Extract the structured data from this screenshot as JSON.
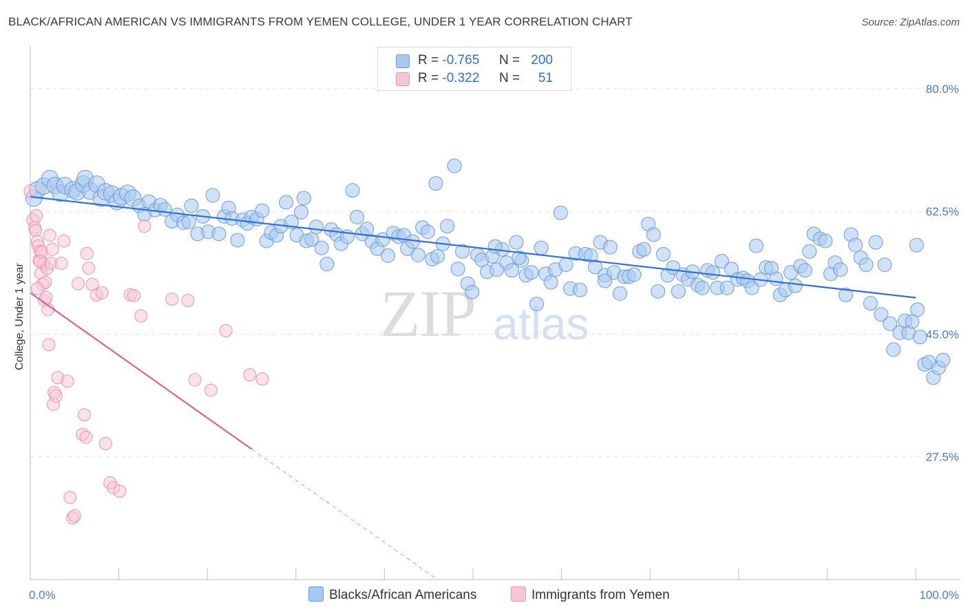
{
  "title": "BLACK/AFRICAN AMERICAN VS IMMIGRANTS FROM YEMEN COLLEGE, UNDER 1 YEAR CORRELATION CHART",
  "source": "Source: ZipAtlas.com",
  "watermark": {
    "zip": "ZIP",
    "atlas": "atlas"
  },
  "legend": {
    "rows": [
      {
        "r_label": "R =",
        "r_value": "-0.765",
        "n_label": "N =",
        "n_value": "200"
      },
      {
        "r_label": "R =",
        "r_value": "-0.322",
        "n_label": "N =",
        "n_value": "51"
      }
    ]
  },
  "bottom_legend": {
    "series1": "Blacks/African Americans",
    "series2": "Immigrants from Yemen"
  },
  "colors": {
    "blue_fill": "#a9c8f0",
    "blue_stroke": "#6b9bd8",
    "blue_line": "#2f6fd6",
    "pink_fill": "#f7c6d6",
    "pink_stroke": "#e892ae",
    "pink_line": "#e0608c",
    "grid": "#e3e3e3",
    "tick_text": "#4a7cc9"
  },
  "chart_data": {
    "type": "scatter",
    "title": "BLACK/AFRICAN AMERICAN VS IMMIGRANTS FROM YEMEN COLLEGE, UNDER 1 YEAR CORRELATION CHART",
    "xlabel": "",
    "ylabel": "College, Under 1 year",
    "xlim": [
      0,
      100
    ],
    "ylim": [
      10,
      85
    ],
    "x_tick_labels": [
      "0.0%",
      "100.0%"
    ],
    "y_ticks": [
      80.0,
      62.5,
      45.0,
      27.5
    ],
    "y_tick_labels": [
      "80.0%",
      "62.5%",
      "45.0%",
      "27.5%"
    ],
    "series": [
      {
        "name": "Blacks/African Americans",
        "R": -0.765,
        "N": 200,
        "trend": {
          "x": [
            0,
            100
          ],
          "y": [
            64.6,
            50.2
          ]
        },
        "points": [
          [
            0.4,
            64.4
          ],
          [
            0.8,
            65.6
          ],
          [
            1.5,
            66.1
          ],
          [
            2.2,
            67.2
          ],
          [
            2.8,
            66.2
          ],
          [
            3.4,
            65.1
          ],
          [
            3.9,
            66.2
          ],
          [
            4.8,
            65.6
          ],
          [
            5.3,
            65.3
          ],
          [
            6.0,
            66.4
          ],
          [
            6.2,
            67.2
          ],
          [
            6.8,
            65.4
          ],
          [
            7.5,
            66.4
          ],
          [
            8.0,
            64.4
          ],
          [
            8.5,
            65.3
          ],
          [
            9.2,
            65.0
          ],
          [
            9.8,
            63.9
          ],
          [
            10.3,
            64.6
          ],
          [
            11.0,
            65.1
          ],
          [
            11.6,
            64.4
          ],
          [
            12.3,
            63.3
          ],
          [
            12.9,
            62.1
          ],
          [
            13.4,
            63.9
          ],
          [
            14.1,
            62.7
          ],
          [
            14.7,
            63.4
          ],
          [
            15.2,
            62.8
          ],
          [
            16.0,
            61.1
          ],
          [
            16.6,
            62.0
          ],
          [
            17.3,
            60.9
          ],
          [
            17.9,
            61.0
          ],
          [
            18.2,
            63.3
          ],
          [
            18.9,
            59.3
          ],
          [
            19.5,
            61.8
          ],
          [
            20.1,
            59.6
          ],
          [
            20.6,
            64.8
          ],
          [
            21.3,
            59.3
          ],
          [
            21.9,
            61.8
          ],
          [
            22.4,
            63.0
          ],
          [
            22.8,
            61.5
          ],
          [
            23.4,
            58.4
          ],
          [
            24.0,
            61.3
          ],
          [
            24.5,
            60.8
          ],
          [
            25.0,
            61.7
          ],
          [
            25.6,
            61.4
          ],
          [
            26.2,
            62.6
          ],
          [
            26.7,
            58.3
          ],
          [
            27.2,
            59.5
          ],
          [
            27.8,
            59.1
          ],
          [
            28.3,
            60.4
          ],
          [
            28.9,
            63.8
          ],
          [
            29.5,
            61.0
          ],
          [
            30.1,
            59.1
          ],
          [
            30.6,
            62.4
          ],
          [
            31.2,
            58.3
          ],
          [
            31.8,
            58.5
          ],
          [
            32.3,
            60.3
          ],
          [
            32.9,
            57.3
          ],
          [
            33.5,
            55.0
          ],
          [
            34.0,
            59.9
          ],
          [
            34.6,
            59.2
          ],
          [
            35.1,
            57.9
          ],
          [
            35.8,
            58.9
          ],
          [
            36.4,
            65.5
          ],
          [
            36.9,
            61.7
          ],
          [
            37.5,
            59.3
          ],
          [
            38.0,
            60.0
          ],
          [
            38.6,
            58.2
          ],
          [
            39.2,
            57.2
          ],
          [
            39.8,
            58.5
          ],
          [
            40.4,
            56.2
          ],
          [
            41.0,
            59.4
          ],
          [
            41.6,
            58.9
          ],
          [
            42.2,
            59.1
          ],
          [
            42.6,
            57.2
          ],
          [
            43.2,
            58.2
          ],
          [
            43.8,
            56.3
          ],
          [
            44.3,
            60.2
          ],
          [
            44.9,
            59.6
          ],
          [
            45.4,
            55.7
          ],
          [
            46.0,
            56.1
          ],
          [
            46.6,
            57.9
          ],
          [
            47.1,
            60.4
          ],
          [
            47.9,
            69.0
          ],
          [
            48.3,
            54.3
          ],
          [
            48.8,
            56.8
          ],
          [
            49.4,
            52.2
          ],
          [
            49.9,
            51.0
          ],
          [
            50.5,
            56.3
          ],
          [
            51.0,
            55.6
          ],
          [
            51.6,
            53.9
          ],
          [
            52.2,
            56.1
          ],
          [
            52.7,
            54.2
          ],
          [
            53.3,
            57.1
          ],
          [
            53.8,
            55.2
          ],
          [
            54.4,
            54.1
          ],
          [
            54.9,
            58.1
          ],
          [
            55.5,
            55.5
          ],
          [
            56.0,
            53.4
          ],
          [
            56.6,
            53.8
          ],
          [
            57.2,
            49.3
          ],
          [
            57.7,
            57.3
          ],
          [
            58.2,
            53.6
          ],
          [
            58.8,
            52.4
          ],
          [
            59.3,
            54.2
          ],
          [
            59.9,
            62.3
          ],
          [
            60.5,
            54.9
          ],
          [
            61.0,
            51.5
          ],
          [
            61.6,
            56.5
          ],
          [
            62.1,
            51.3
          ],
          [
            62.7,
            56.4
          ],
          [
            63.3,
            56.2
          ],
          [
            63.8,
            54.6
          ],
          [
            64.4,
            58.1
          ],
          [
            64.9,
            53.4
          ],
          [
            65.5,
            57.4
          ],
          [
            65.9,
            53.8
          ],
          [
            66.6,
            50.8
          ],
          [
            67.1,
            53.2
          ],
          [
            67.6,
            53.2
          ],
          [
            68.2,
            53.5
          ],
          [
            68.8,
            56.8
          ],
          [
            69.3,
            57.1
          ],
          [
            69.8,
            60.7
          ],
          [
            70.4,
            59.2
          ],
          [
            70.9,
            51.1
          ],
          [
            71.5,
            56.4
          ],
          [
            72.0,
            53.4
          ],
          [
            72.6,
            54.5
          ],
          [
            73.2,
            51.1
          ],
          [
            73.7,
            53.5
          ],
          [
            74.3,
            52.8
          ],
          [
            74.8,
            53.9
          ],
          [
            75.4,
            52.0
          ],
          [
            75.9,
            51.6
          ],
          [
            76.5,
            54.1
          ],
          [
            77.1,
            53.8
          ],
          [
            77.6,
            51.6
          ],
          [
            78.1,
            55.4
          ],
          [
            78.7,
            51.6
          ],
          [
            79.2,
            54.3
          ],
          [
            79.9,
            52.8
          ],
          [
            80.5,
            53.0
          ],
          [
            81.0,
            52.6
          ],
          [
            81.5,
            51.6
          ],
          [
            82.0,
            57.6
          ],
          [
            82.5,
            52.8
          ],
          [
            83.1,
            54.5
          ],
          [
            83.7,
            54.4
          ],
          [
            84.2,
            52.9
          ],
          [
            84.7,
            50.6
          ],
          [
            85.3,
            51.3
          ],
          [
            85.9,
            53.8
          ],
          [
            86.4,
            51.9
          ],
          [
            87.0,
            54.7
          ],
          [
            87.5,
            54.1
          ],
          [
            88.0,
            56.8
          ],
          [
            88.5,
            59.3
          ],
          [
            89.2,
            58.6
          ],
          [
            89.8,
            58.3
          ],
          [
            90.4,
            53.6
          ],
          [
            90.9,
            55.2
          ],
          [
            91.5,
            54.2
          ],
          [
            92.1,
            50.6
          ],
          [
            92.7,
            59.2
          ],
          [
            93.2,
            57.7
          ],
          [
            93.8,
            55.9
          ],
          [
            94.4,
            54.9
          ],
          [
            94.9,
            49.4
          ],
          [
            95.5,
            58.1
          ],
          [
            96.1,
            47.8
          ],
          [
            96.5,
            54.9
          ],
          [
            97.1,
            46.5
          ],
          [
            97.5,
            42.8
          ],
          [
            98.2,
            45.2
          ],
          [
            98.8,
            46.9
          ],
          [
            99.2,
            45.2
          ],
          [
            99.6,
            46.8
          ],
          [
            100.1,
            57.7
          ],
          [
            100.5,
            44.6
          ],
          [
            101.0,
            40.7
          ],
          [
            101.5,
            41.0
          ],
          [
            102.0,
            38.8
          ],
          [
            102.6,
            40.2
          ],
          [
            103.1,
            41.3
          ],
          [
            55.2,
            55.9
          ],
          [
            30.9,
            64.4
          ],
          [
            64.9,
            52.6
          ],
          [
            45.8,
            66.5
          ],
          [
            52.5,
            57.5
          ],
          [
            100.2,
            48.5
          ]
        ]
      },
      {
        "name": "Immigrants from Yemen",
        "R": -0.322,
        "N": 51,
        "trend": {
          "x": [
            0,
            25
          ],
          "y": [
            50.9,
            28.6
          ]
        },
        "trend_dashed": {
          "x": [
            25,
            46
          ],
          "y": [
            28.6,
            10.0
          ]
        },
        "points": [
          [
            0.0,
            65.4
          ],
          [
            0.3,
            61.3
          ],
          [
            0.5,
            60.2
          ],
          [
            0.6,
            59.8
          ],
          [
            0.7,
            61.9
          ],
          [
            0.8,
            58.2
          ],
          [
            0.9,
            57.6
          ],
          [
            1.0,
            55.5
          ],
          [
            1.1,
            56.8
          ],
          [
            1.2,
            53.7
          ],
          [
            1.3,
            56.7
          ],
          [
            1.4,
            52.1
          ],
          [
            1.5,
            55.0
          ],
          [
            1.6,
            49.8
          ],
          [
            1.7,
            52.4
          ],
          [
            1.8,
            50.2
          ],
          [
            1.9,
            54.4
          ],
          [
            2.0,
            48.5
          ],
          [
            2.1,
            43.5
          ],
          [
            2.2,
            59.1
          ],
          [
            2.3,
            55.1
          ],
          [
            2.5,
            57.1
          ],
          [
            2.6,
            35.0
          ],
          [
            2.7,
            36.7
          ],
          [
            2.9,
            36.2
          ],
          [
            3.1,
            38.8
          ],
          [
            3.5,
            55.1
          ],
          [
            3.8,
            58.3
          ],
          [
            4.2,
            38.3
          ],
          [
            4.5,
            21.7
          ],
          [
            4.8,
            18.8
          ],
          [
            5.0,
            19.1
          ],
          [
            5.4,
            52.2
          ],
          [
            5.9,
            30.7
          ],
          [
            6.1,
            33.5
          ],
          [
            6.3,
            30.3
          ],
          [
            6.4,
            56.5
          ],
          [
            6.6,
            54.4
          ],
          [
            7.0,
            52.1
          ],
          [
            7.5,
            50.6
          ],
          [
            8.1,
            50.9
          ],
          [
            8.5,
            29.4
          ],
          [
            9.0,
            23.8
          ],
          [
            9.4,
            23.1
          ],
          [
            10.1,
            22.6
          ],
          [
            11.3,
            50.6
          ],
          [
            11.7,
            50.5
          ],
          [
            12.5,
            47.6
          ],
          [
            12.9,
            60.4
          ],
          [
            16.0,
            50.0
          ],
          [
            17.8,
            49.8
          ],
          [
            18.6,
            38.5
          ],
          [
            20.4,
            37.0
          ],
          [
            22.1,
            45.5
          ],
          [
            24.8,
            39.2
          ],
          [
            26.2,
            38.6
          ],
          [
            1.1,
            55.4
          ],
          [
            0.8,
            51.5
          ]
        ]
      }
    ]
  }
}
